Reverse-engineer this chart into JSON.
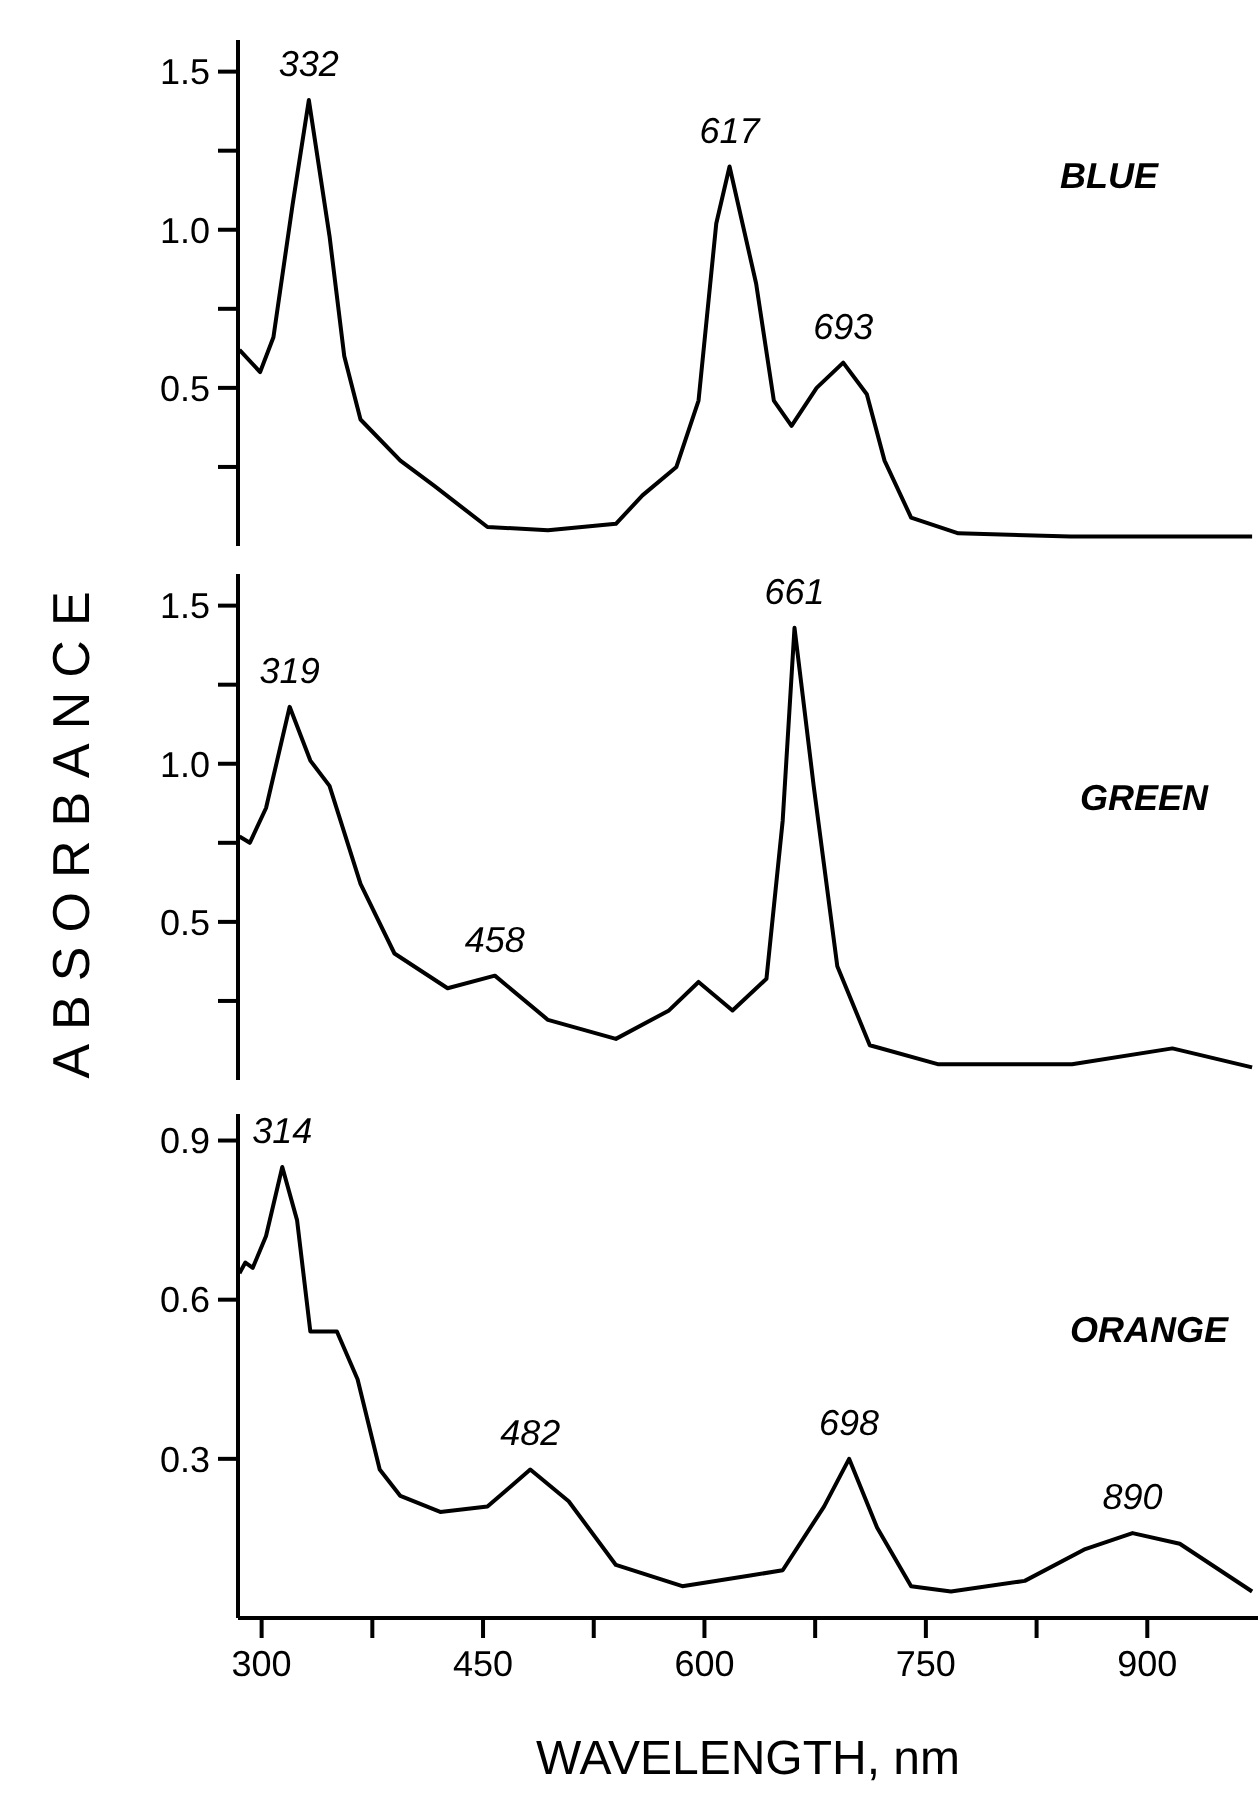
{
  "chart_data": [
    {
      "type": "line",
      "tick_labels": "y",
      "xlim": [
        284,
        975
      ],
      "ylim": [
        0,
        1.6
      ],
      "yticks": [
        {
          "value": 0.25,
          "label": null
        },
        {
          "value": 0.5,
          "label": "0.5"
        },
        {
          "value": 0.75,
          "label": null
        },
        {
          "value": 1,
          "label": "1.0"
        },
        {
          "value": 1.25,
          "label": null
        },
        {
          "value": 1.5,
          "label": "1.5"
        }
      ],
      "series": [
        {
          "name": "BLUE",
          "color": "#000000",
          "x": [
            285,
            299,
            308,
            321,
            332,
            346,
            356,
            367,
            394,
            417,
            453,
            494,
            540,
            558,
            581,
            596,
            608,
            617,
            635,
            647,
            659,
            676,
            694,
            710,
            722,
            740,
            772,
            848,
            971
          ],
          "values": [
            0.62,
            0.55,
            0.66,
            1.08,
            1.41,
            0.98,
            0.6,
            0.4,
            0.27,
            0.19,
            0.06,
            0.05,
            0.07,
            0.16,
            0.25,
            0.46,
            1.02,
            1.2,
            0.83,
            0.46,
            0.38,
            0.5,
            0.58,
            0.48,
            0.27,
            0.09,
            0.04,
            0.03,
            0.03
          ]
        }
      ],
      "annotations": [
        {
          "text": "332",
          "x": 332,
          "y": 1.41
        },
        {
          "text": "617",
          "x": 617,
          "y": 1.2
        },
        {
          "text": "693",
          "x": 694,
          "y": 0.58
        }
      ]
    },
    {
      "type": "line",
      "tick_labels": "y",
      "ylabel": "ABSORBANCE",
      "xlim": [
        284,
        975
      ],
      "ylim": [
        0,
        1.6
      ],
      "yticks": [
        {
          "value": 0.25,
          "label": null
        },
        {
          "value": 0.5,
          "label": "0.5"
        },
        {
          "value": 0.75,
          "label": null
        },
        {
          "value": 1,
          "label": "1.0"
        },
        {
          "value": 1.25,
          "label": null
        },
        {
          "value": 1.5,
          "label": "1.5"
        }
      ],
      "series": [
        {
          "name": "GREEN",
          "color": "#000000",
          "x": [
            285,
            292,
            303,
            319,
            333,
            346,
            367,
            390,
            426,
            458,
            494,
            540,
            576,
            596,
            619,
            642,
            653,
            661,
            674,
            690,
            712,
            758,
            849,
            917,
            971
          ],
          "values": [
            0.77,
            0.75,
            0.86,
            1.18,
            1.01,
            0.93,
            0.62,
            0.4,
            0.29,
            0.33,
            0.19,
            0.13,
            0.22,
            0.31,
            0.22,
            0.32,
            0.82,
            1.43,
            0.93,
            0.36,
            0.11,
            0.05,
            0.05,
            0.1,
            0.04
          ]
        }
      ],
      "annotations": [
        {
          "text": "319",
          "x": 319,
          "y": 1.18
        },
        {
          "text": "458",
          "x": 458,
          "y": 0.33
        },
        {
          "text": "661",
          "x": 661,
          "y": 1.43
        }
      ]
    },
    {
      "type": "line",
      "xlabel": "WAVELENGTH, nm",
      "xlim": [
        284,
        975
      ],
      "xticks": [
        300,
        {
          "value": 375,
          "label": null
        },
        450,
        {
          "value": 525,
          "label": null
        },
        600,
        {
          "value": 675,
          "label": null
        },
        750,
        {
          "value": 825,
          "label": null
        },
        900
      ],
      "ylim": [
        0,
        0.95
      ],
      "yticks": [
        0.3,
        0.6,
        0.9
      ],
      "series": [
        {
          "name": "ORANGE",
          "color": "#000000",
          "x": [
            285,
            289,
            294,
            303,
            314,
            324,
            333,
            351,
            365,
            380,
            394,
            421,
            453,
            482,
            508,
            540,
            585,
            631,
            653,
            681,
            698,
            717,
            740,
            767,
            817,
            858,
            890,
            922,
            971
          ],
          "values": [
            0.65,
            0.67,
            0.66,
            0.72,
            0.85,
            0.75,
            0.54,
            0.54,
            0.45,
            0.28,
            0.23,
            0.2,
            0.21,
            0.28,
            0.22,
            0.1,
            0.06,
            0.08,
            0.09,
            0.21,
            0.3,
            0.17,
            0.06,
            0.05,
            0.07,
            0.13,
            0.16,
            0.14,
            0.05
          ]
        }
      ],
      "annotations": [
        {
          "text": "314",
          "x": 314,
          "y": 0.85
        },
        {
          "text": "482",
          "x": 482,
          "y": 0.28
        },
        {
          "text": "698",
          "x": 698,
          "y": 0.3
        },
        {
          "text": "890",
          "x": 890,
          "y": 0.16
        }
      ]
    }
  ]
}
